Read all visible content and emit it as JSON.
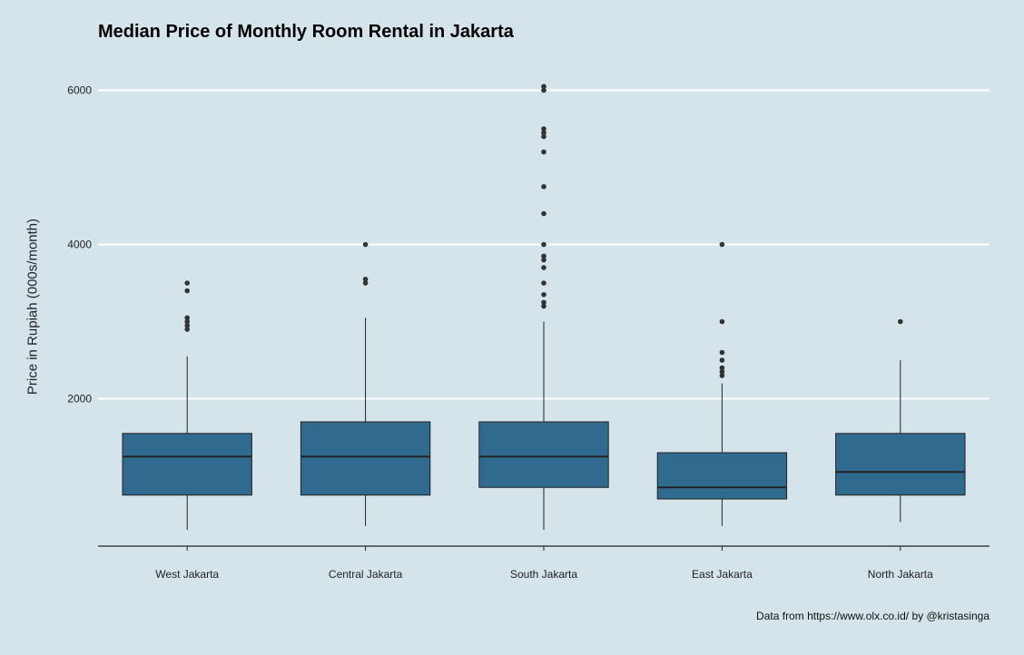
{
  "chart_data": {
    "type": "boxplot",
    "title": "Median Price of Monthly Room Rental in Jakarta",
    "xlabel": "",
    "ylabel": "Price in Rupiah (000s/month)",
    "caption": "Data from https://www.olx.co.id/ by @kristasinga",
    "ylim": [
      100,
      6100
    ],
    "yticks": [
      2000,
      4000,
      6000
    ],
    "grid": "horizontal",
    "box_color": "#306a8f",
    "categories": [
      "West Jakarta",
      "Central Jakarta",
      "South Jakarta",
      "East Jakarta",
      "North Jakarta"
    ],
    "boxes": [
      {
        "whisker_low": 300,
        "q1": 750,
        "median": 1250,
        "q3": 1550,
        "whisker_high": 2550,
        "outliers": [
          2900,
          2950,
          3000,
          3050,
          3400,
          3500
        ]
      },
      {
        "whisker_low": 350,
        "q1": 750,
        "median": 1250,
        "q3": 1700,
        "whisker_high": 3050,
        "outliers": [
          3500,
          3550,
          4000
        ]
      },
      {
        "whisker_low": 300,
        "q1": 850,
        "median": 1250,
        "q3": 1700,
        "whisker_high": 3000,
        "outliers": [
          3200,
          3250,
          3350,
          3500,
          3700,
          3800,
          3850,
          4000,
          4400,
          4750,
          5200,
          5400,
          5450,
          5500,
          6000,
          6050
        ]
      },
      {
        "whisker_low": 350,
        "q1": 700,
        "median": 850,
        "q3": 1300,
        "whisker_high": 2200,
        "outliers": [
          2300,
          2350,
          2400,
          2500,
          2600,
          3000,
          4000
        ]
      },
      {
        "whisker_low": 400,
        "q1": 750,
        "median": 1050,
        "q3": 1550,
        "whisker_high": 2500,
        "outliers": [
          3000
        ]
      }
    ]
  }
}
